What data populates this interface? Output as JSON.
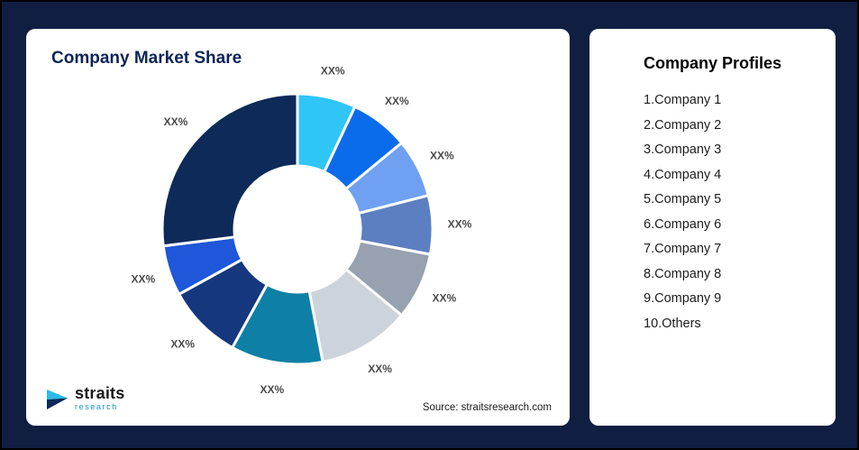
{
  "page": {
    "background": "#101E42"
  },
  "market_share_card": {
    "title": "Company Market Share",
    "source": "Source: straitsresearch.com",
    "logo": {
      "brand": "straits",
      "tagline": "research"
    }
  },
  "profiles_card": {
    "title": "Company Profiles",
    "items": [
      "1.Company 1",
      "2.Company 2",
      "3.Company 3",
      "4.Company 4",
      "5.Company 5",
      "6.Company 6",
      "7.Company 7",
      "8.Company 8",
      "9.Company 9",
      "10.Others"
    ]
  },
  "chart_data": {
    "type": "pie",
    "donut": true,
    "title": "Company Market Share",
    "start_angle_deg": 0,
    "clockwise": true,
    "slices": [
      {
        "label": "XX%",
        "value": 7,
        "color": "#2FC5F6"
      },
      {
        "label": "XX%",
        "value": 7,
        "color": "#0B6CEB"
      },
      {
        "label": "XX%",
        "value": 7,
        "color": "#6FA0F2"
      },
      {
        "label": "XX%",
        "value": 7,
        "color": "#5C7FC1"
      },
      {
        "label": "XX%",
        "value": 8,
        "color": "#97A1AF"
      },
      {
        "label": "XX%",
        "value": 11,
        "color": "#CDD3DA"
      },
      {
        "label": "XX%",
        "value": 11,
        "color": "#0E80A6"
      },
      {
        "label": "XX%",
        "value": 9,
        "color": "#15377E"
      },
      {
        "label": "XX%",
        "value": 6,
        "color": "#1E57D9"
      },
      {
        "label": "XX%",
        "value": 27,
        "color": "#0D2A59"
      }
    ]
  }
}
